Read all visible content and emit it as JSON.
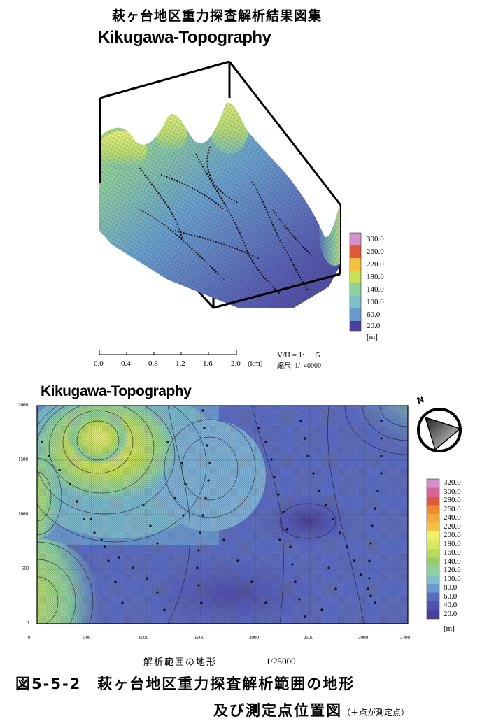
{
  "header": {
    "title": "萩ヶ台地区重力探査解析結果図集"
  },
  "upper_plot": {
    "title": "Kikugawa-Topography",
    "legend": {
      "values": [
        "300.0",
        "260.0",
        "220.0",
        "180.0",
        "140.0",
        "100.0",
        "60.0",
        "20.0"
      ],
      "unit": "[m]"
    },
    "scale_bar": {
      "ticks": [
        "0.0",
        "0.4",
        "0.8",
        "1.2",
        "1.6",
        "2.0"
      ],
      "unit": "(km)"
    },
    "vh_ratio": "V/H = 1:      5",
    "scale": "縮尺: 1/  40000"
  },
  "lower_plot": {
    "title": "Kikugawa-Topography",
    "y_ticks": [
      "2000",
      "1500",
      "1000",
      "500",
      "0"
    ],
    "x_ticks": [
      "0",
      "500",
      "1000",
      "1500",
      "2000",
      "2500",
      "3000",
      "3400"
    ],
    "legend": {
      "values": [
        "320.0",
        "300.0",
        "280.0",
        "260.0",
        "240.0",
        "220.0",
        "200.0",
        "180.0",
        "160.0",
        "140.0",
        "120.0",
        "100.0",
        "80.0",
        "60.0",
        "40.0",
        "20.0"
      ],
      "unit": "[m]"
    },
    "north_label": "N"
  },
  "caption": {
    "sub": "解析範囲の地形",
    "scale": "1/25000",
    "line1": "図5-5-2　萩ヶ台地区重力探査解析範囲の地形",
    "line2": "及び測定点位置図",
    "note": "（＋点が測定点）"
  },
  "colors": {
    "ramp": [
      "#4b3f9a",
      "#5a6bc0",
      "#6c98d0",
      "#7cc0c8",
      "#8fd0a0",
      "#9acd6a",
      "#c6e05a",
      "#eef06a",
      "#f4c040",
      "#ee8a30",
      "#e05a3a",
      "#d8649a",
      "#d490c8"
    ]
  }
}
